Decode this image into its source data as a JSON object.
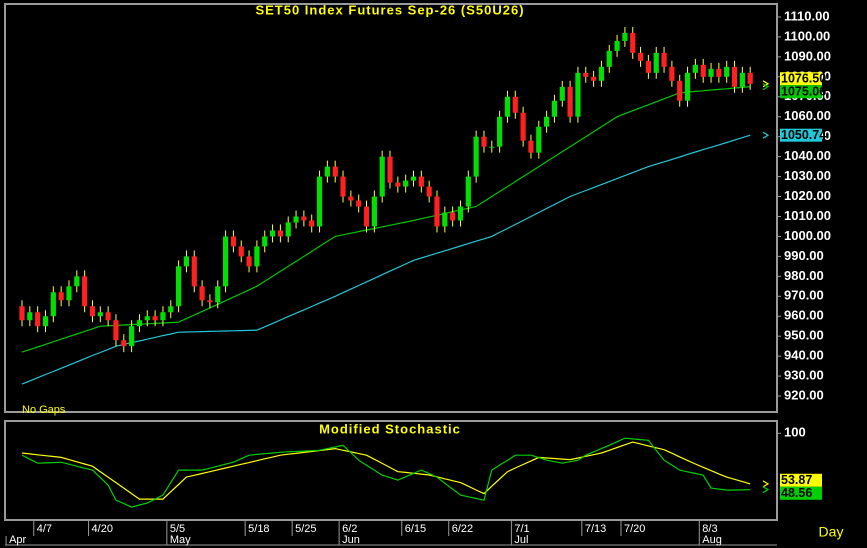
{
  "period": "Day",
  "chart_data": [
    {
      "type": "candlestick",
      "title": "SET50 Index Futures Sep-26 (S50U26)",
      "annotation": "No Gaps",
      "categories": [
        null,
        null,
        "4/7",
        null,
        null,
        null,
        null,
        null,
        null,
        "4/20",
        null,
        null,
        null,
        null,
        null,
        null,
        null,
        null,
        null,
        "5/5",
        null,
        null,
        null,
        null,
        null,
        null,
        null,
        null,
        null,
        "5/18",
        null,
        null,
        null,
        null,
        null,
        "5/25",
        null,
        null,
        null,
        null,
        null,
        "6/2",
        null,
        null,
        null,
        null,
        null,
        null,
        null,
        "6/15",
        null,
        null,
        null,
        null,
        null,
        "6/22",
        null,
        null,
        null,
        null,
        null,
        null,
        null,
        "7/1",
        null,
        null,
        null,
        null,
        null,
        null,
        null,
        null,
        "7/13",
        null,
        null,
        null,
        null,
        "7/20",
        null,
        null,
        null,
        null,
        null,
        null,
        null,
        null,
        null,
        "8/3",
        null,
        null,
        null,
        null,
        null,
        null
      ],
      "category_groups": [
        "Apr",
        null,
        null,
        null,
        null,
        null,
        null,
        null,
        null,
        null,
        null,
        null,
        null,
        null,
        null,
        null,
        null,
        null,
        null,
        "May",
        null,
        null,
        null,
        null,
        null,
        null,
        null,
        null,
        null,
        null,
        null,
        null,
        null,
        null,
        null,
        null,
        null,
        null,
        null,
        null,
        null,
        "Jun",
        null,
        null,
        null,
        null,
        null,
        null,
        null,
        null,
        null,
        null,
        null,
        null,
        null,
        null,
        null,
        null,
        null,
        null,
        null,
        null,
        null,
        "Jul",
        null,
        null,
        null,
        null,
        null,
        null,
        null,
        null,
        null,
        null,
        null,
        null,
        null,
        null,
        null,
        null,
        null,
        null,
        null,
        null,
        null,
        null,
        null,
        "Aug",
        null,
        null,
        null,
        null,
        null,
        null
      ],
      "open": [
        965,
        958,
        962,
        955,
        960,
        972,
        968,
        975,
        980,
        965,
        960,
        962,
        958,
        948,
        945,
        955,
        958,
        960,
        958,
        962,
        965,
        985,
        990,
        975,
        968,
        967,
        975,
        1000,
        995,
        990,
        985,
        995,
        1000,
        1003,
        1000,
        1007,
        1010,
        1008,
        1005,
        1030,
        1035,
        1030,
        1020,
        1018,
        1015,
        1005,
        1020,
        1040,
        1027,
        1025,
        1028,
        1030,
        1025,
        1020,
        1005,
        1012,
        1008,
        1015,
        1030,
        1050,
        1045,
        1045,
        1060,
        1070,
        1062,
        1048,
        1042,
        1055,
        1060,
        1068,
        1075,
        1060,
        1082,
        1080,
        1078,
        1085,
        1093,
        1098,
        1102,
        1092,
        1088,
        1082,
        1092,
        1085,
        1078,
        1068,
        1082,
        1086,
        1080,
        1084,
        1080,
        1085,
        1075,
        1082
      ],
      "high": [
        968,
        965,
        965,
        963,
        975,
        975,
        978,
        983,
        983,
        968,
        965,
        965,
        961,
        951,
        958,
        961,
        963,
        963,
        965,
        968,
        988,
        993,
        993,
        978,
        971,
        978,
        1003,
        1003,
        998,
        993,
        998,
        1003,
        1006,
        1006,
        1010,
        1013,
        1013,
        1011,
        1033,
        1038,
        1038,
        1033,
        1023,
        1021,
        1018,
        1023,
        1043,
        1043,
        1030,
        1031,
        1033,
        1033,
        1028,
        1023,
        1015,
        1015,
        1018,
        1033,
        1053,
        1053,
        1048,
        1063,
        1073,
        1073,
        1065,
        1051,
        1058,
        1063,
        1071,
        1078,
        1078,
        1085,
        1085,
        1083,
        1088,
        1096,
        1101,
        1105,
        1105,
        1095,
        1091,
        1095,
        1095,
        1088,
        1081,
        1085,
        1089,
        1089,
        1087,
        1087,
        1088,
        1088,
        1085,
        1085
      ],
      "low": [
        955,
        955,
        952,
        952,
        957,
        965,
        965,
        972,
        962,
        957,
        957,
        955,
        945,
        942,
        942,
        952,
        955,
        955,
        955,
        959,
        962,
        982,
        972,
        965,
        964,
        964,
        972,
        992,
        987,
        982,
        982,
        992,
        997,
        997,
        997,
        1004,
        1005,
        1002,
        1002,
        1027,
        1027,
        1017,
        1015,
        1012,
        1002,
        1002,
        1017,
        1024,
        1022,
        1022,
        1025,
        1022,
        1017,
        1002,
        1002,
        1005,
        1005,
        1012,
        1027,
        1042,
        1042,
        1042,
        1057,
        1059,
        1045,
        1039,
        1039,
        1052,
        1057,
        1065,
        1057,
        1057,
        1077,
        1075,
        1075,
        1082,
        1090,
        1095,
        1089,
        1085,
        1079,
        1079,
        1082,
        1075,
        1065,
        1065,
        1079,
        1077,
        1077,
        1077,
        1077,
        1072,
        1072,
        1073.5
      ],
      "close": [
        958,
        962,
        955,
        960,
        972,
        968,
        975,
        980,
        965,
        960,
        962,
        958,
        948,
        945,
        955,
        958,
        960,
        958,
        962,
        965,
        985,
        990,
        975,
        968,
        967,
        975,
        1000,
        995,
        990,
        985,
        995,
        1000,
        1003,
        1000,
        1007,
        1010,
        1008,
        1005,
        1030,
        1035,
        1030,
        1020,
        1018,
        1015,
        1005,
        1020,
        1040,
        1027,
        1025,
        1028,
        1030,
        1025,
        1020,
        1005,
        1012,
        1008,
        1015,
        1030,
        1050,
        1045,
        1045,
        1060,
        1070,
        1062,
        1048,
        1042,
        1055,
        1060,
        1068,
        1075,
        1060,
        1082,
        1080,
        1078,
        1085,
        1093,
        1098,
        1102,
        1092,
        1088,
        1082,
        1092,
        1085,
        1078,
        1068,
        1082,
        1086,
        1080,
        1084,
        1080,
        1085,
        1075,
        1082,
        1076.5
      ],
      "close_label": "1076.50",
      "close_label_color": "#ffff00",
      "up_color": "#00e000",
      "down_color": "#ff2020",
      "wick_color": "#ffff40",
      "series": [
        {
          "color": "#00c800",
          "values": [
            942,
            943.3,
            944.6,
            945.9,
            947.2,
            948.5,
            949.8,
            951.1,
            952.4,
            953.7,
            955,
            955.2,
            955.4,
            955.6,
            955.8,
            956,
            956.2,
            956.4,
            956.6,
            956.8,
            957,
            958.8,
            960.6,
            962.4,
            964.2,
            966,
            967.8,
            969.6,
            971.4,
            973.2,
            975,
            977.5,
            980,
            982.5,
            985,
            987.5,
            990,
            992.5,
            995,
            997.5,
            1000,
            1000.8,
            1001.6,
            1002.4,
            1003.2,
            1004,
            1004.8,
            1005.6,
            1006.4,
            1007.2,
            1008,
            1008.9,
            1009.8,
            1010.6,
            1011.5,
            1012.4,
            1013.3,
            1014.1,
            1015,
            1017.5,
            1020,
            1022.5,
            1025,
            1027.5,
            1030,
            1032.5,
            1035,
            1037.5,
            1040,
            1042.5,
            1045,
            1047.5,
            1050,
            1052.5,
            1055,
            1057.5,
            1060,
            1061.5,
            1063,
            1064.5,
            1066,
            1067.5,
            1069,
            1070.5,
            1072,
            1072.3,
            1072.7,
            1073,
            1073.4,
            1073.7,
            1074,
            1074.4,
            1074.7,
            1075.06
          ]
        },
        {
          "color": "#20c8d8",
          "values": [
            926,
            927.6,
            929.2,
            930.8,
            932.3,
            933.9,
            935.5,
            937.1,
            938.7,
            940.3,
            941.8,
            943.4,
            945,
            945.9,
            946.8,
            947.6,
            948.5,
            949.4,
            950.3,
            951.1,
            952,
            952.1,
            952.2,
            952.3,
            952.4,
            952.5,
            952.6,
            952.7,
            952.8,
            952.9,
            953,
            954.7,
            956.4,
            958.1,
            959.8,
            961.5,
            963.2,
            964.9,
            966.6,
            968.3,
            970,
            971.8,
            973.6,
            975.4,
            977.2,
            979,
            980.8,
            982.6,
            984.4,
            986.2,
            988,
            989.2,
            990.4,
            991.6,
            992.8,
            994,
            995.2,
            996.4,
            997.6,
            998.8,
            1000,
            1002,
            1004,
            1006,
            1008,
            1010,
            1012,
            1014,
            1016,
            1018,
            1020,
            1021.5,
            1023,
            1024.5,
            1026,
            1027.5,
            1029,
            1030.5,
            1032,
            1033.5,
            1035,
            1036.2,
            1037.4,
            1038.6,
            1039.8,
            1041.1,
            1042.3,
            1043.5,
            1044.7,
            1045.9,
            1047.1,
            1048.3,
            1049.5,
            1050.74
          ]
        }
      ],
      "ylim": [
        912,
        1116
      ],
      "yticks": [
        {
          "value": 920,
          "label": "920.00"
        },
        {
          "value": 930,
          "label": "930.00"
        },
        {
          "value": 940,
          "label": "940.00"
        },
        {
          "value": 950,
          "label": "950.00"
        },
        {
          "value": 960,
          "label": "960.00"
        },
        {
          "value": 970,
          "label": "970.00"
        },
        {
          "value": 980,
          "label": "980.00"
        },
        {
          "value": 990,
          "label": "990.00"
        },
        {
          "value": 1000,
          "label": "1000.00"
        },
        {
          "value": 1010,
          "label": "1010.00"
        },
        {
          "value": 1020,
          "label": "1020.00"
        },
        {
          "value": 1030,
          "label": "1030.00"
        },
        {
          "value": 1040,
          "label": "1040.00"
        },
        {
          "value": 1050,
          "label": "1050.00"
        },
        {
          "value": 1060,
          "label": "1060.00"
        },
        {
          "value": 1070,
          "label": "1070.00"
        },
        {
          "value": 1080,
          "label": "1080.00"
        },
        {
          "value": 1090,
          "label": "1090.00"
        },
        {
          "value": 1100,
          "label": "1100.00"
        },
        {
          "value": 1110,
          "label": "1110.00"
        }
      ]
    },
    {
      "type": "line",
      "title": "Modified Stochastic",
      "series": [
        {
          "color": "#ffff00",
          "values": [
            82,
            81.2,
            80.4,
            79.6,
            78.8,
            78,
            76,
            74,
            72,
            70,
            65,
            60,
            55,
            50,
            45,
            40,
            40,
            40,
            40,
            46.7,
            53.3,
            60,
            61.7,
            63.3,
            65,
            66.7,
            68.3,
            70,
            71.7,
            73.3,
            75,
            76.7,
            78.3,
            80,
            80.9,
            81.7,
            82.6,
            83.4,
            84.3,
            85.1,
            86,
            84.5,
            83,
            81.5,
            80,
            76.3,
            72.5,
            68.8,
            65,
            64.3,
            63.5,
            62.8,
            62,
            60.3,
            58.5,
            56.8,
            55,
            51.7,
            48.3,
            45,
            51.7,
            58.3,
            65,
            68.3,
            71.5,
            74.8,
            78,
            77.5,
            77,
            76.5,
            76,
            77.5,
            79,
            80.5,
            82,
            84.5,
            87,
            89.5,
            92,
            90.3,
            88.5,
            86.8,
            85,
            81.8,
            78.5,
            75.3,
            72,
            69,
            66,
            63,
            60,
            58,
            55.9,
            53.87
          ]
        },
        {
          "color": "#00d000",
          "values": [
            80,
            76.4,
            72.7,
            73,
            73.3,
            73.6,
            71.8,
            70,
            68.2,
            66.4,
            59.6,
            52.7,
            39,
            35.9,
            32.7,
            34.6,
            36.4,
            40,
            43.6,
            55,
            66.4,
            66.4,
            66.4,
            66.4,
            68.2,
            70,
            71.8,
            73.6,
            76.8,
            80,
            80.7,
            81.4,
            82,
            82.7,
            83.1,
            83.4,
            83.8,
            84.1,
            84.5,
            86,
            87.5,
            89,
            82.3,
            75.5,
            70.9,
            66.4,
            61.8,
            59.6,
            57.3,
            60.3,
            63.4,
            66.4,
            63.2,
            60,
            54.5,
            49.1,
            43.6,
            42.1,
            40.5,
            39,
            66.4,
            71,
            75.4,
            80,
            80,
            80,
            77.8,
            75.5,
            74.1,
            72.7,
            74.1,
            75.5,
            80,
            83,
            86,
            89,
            92.3,
            95.5,
            94.9,
            94.2,
            93.6,
            84.6,
            75.5,
            71,
            66.4,
            64.9,
            63.3,
            61.8,
            50,
            49.1,
            48.2,
            48.3,
            48.4,
            48.56
          ]
        }
      ],
      "ylim": [
        20,
        103
      ],
      "yticks": [
        100
      ]
    }
  ]
}
